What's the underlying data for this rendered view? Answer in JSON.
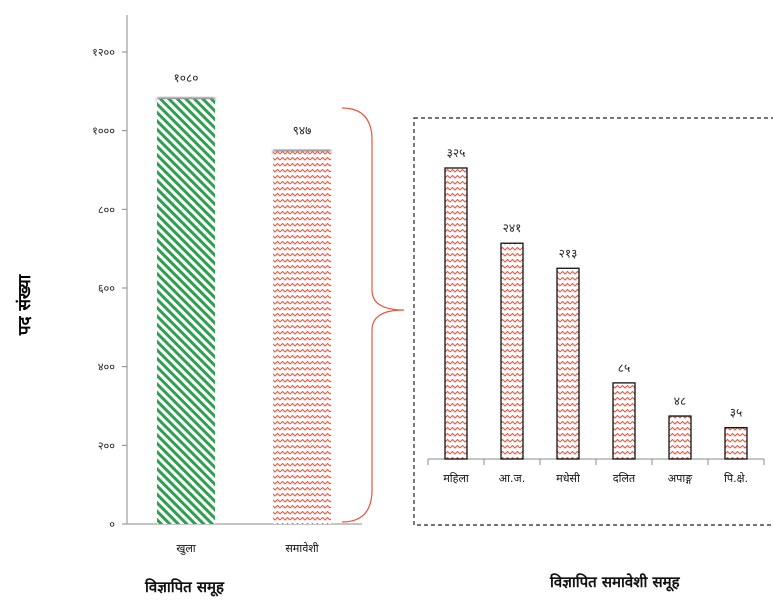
{
  "y_axis_label": "पद संख्या",
  "bottom_labels": {
    "left": "विज्ञापित समूह",
    "right": "विज्ञापित समावेशी समूह"
  },
  "chart_data": [
    {
      "type": "bar",
      "categories": [
        "खुला",
        "समावेशी"
      ],
      "values": [
        1080,
        947
      ],
      "value_labels": [
        "१०८०",
        "९४७"
      ],
      "ylabel": "पद संख्या",
      "xlabel": "विज्ञापित समूह",
      "ylim": [
        0,
        1200
      ],
      "yticks": [
        0,
        200,
        400,
        600,
        800,
        1000,
        1200
      ],
      "ytick_labels": [
        "०",
        "२००",
        "४००",
        "६००",
        "८००",
        "१०००",
        "१२००"
      ],
      "colors": [
        "#2e9e4f",
        "#e8573f"
      ],
      "patterns": [
        "diagonal-hatch",
        "zigzag"
      ],
      "grid": false
    },
    {
      "type": "bar",
      "categories": [
        "महिला",
        "आ.ज.",
        "मधेसी",
        "दलित",
        "अपाङ्ग",
        "पि.क्षे."
      ],
      "values": [
        325,
        241,
        213,
        85,
        48,
        35
      ],
      "value_labels": [
        "३२५",
        "२४१",
        "२१३",
        "८५",
        "४८",
        "३५"
      ],
      "xlabel": "विज्ञापित समावेशी समूह",
      "colors": [
        "#e8573f"
      ],
      "patterns": [
        "zigzag"
      ],
      "grid": false
    }
  ]
}
